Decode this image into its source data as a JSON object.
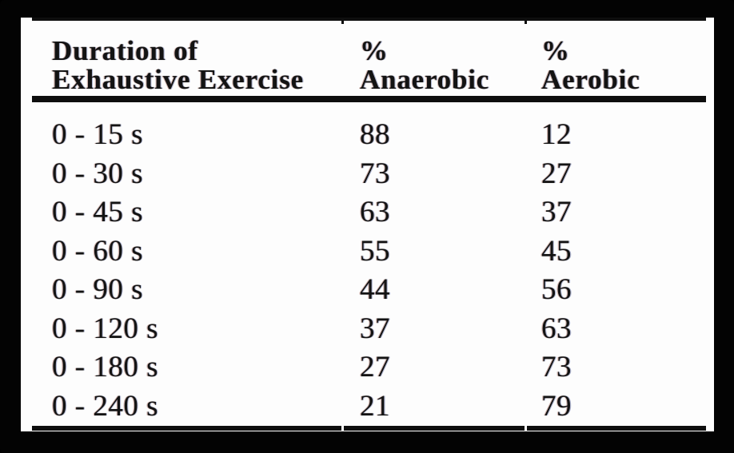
{
  "colors": {
    "frame": "#030303",
    "paper": "#fdfdfd",
    "rule": "#0e0e0e",
    "text": "#131313"
  },
  "table": {
    "columns": [
      {
        "id": "duration",
        "header_line1": "Duration of",
        "header_line2": "Exhaustive Exercise"
      },
      {
        "id": "anaerobic",
        "header_line1": "%",
        "header_line2": "Anaerobic"
      },
      {
        "id": "aerobic",
        "header_line1": "%",
        "header_line2": "Aerobic"
      }
    ],
    "rows": [
      {
        "duration": "0 - 15 s",
        "anaerobic": "88",
        "aerobic": "12"
      },
      {
        "duration": "0 - 30 s",
        "anaerobic": "73",
        "aerobic": "27"
      },
      {
        "duration": "0 - 45 s",
        "anaerobic": "63",
        "aerobic": "37"
      },
      {
        "duration": "0 - 60 s",
        "anaerobic": "55",
        "aerobic": "45"
      },
      {
        "duration": "0 - 90 s",
        "anaerobic": "44",
        "aerobic": "56"
      },
      {
        "duration": "0 - 120 s",
        "anaerobic": "37",
        "aerobic": "63"
      },
      {
        "duration": "0 - 180 s",
        "anaerobic": "27",
        "aerobic": "73"
      },
      {
        "duration": "0 - 240 s",
        "anaerobic": "21",
        "aerobic": "79"
      }
    ]
  },
  "chart_data": {
    "type": "table",
    "columns": [
      "Duration of Exhaustive Exercise",
      "% Anaerobic",
      "% Aerobic"
    ],
    "rows": [
      [
        "0 - 15 s",
        88,
        12
      ],
      [
        "0 - 30 s",
        73,
        27
      ],
      [
        "0 - 45 s",
        63,
        37
      ],
      [
        "0 - 60 s",
        55,
        45
      ],
      [
        "0 - 90 s",
        44,
        56
      ],
      [
        "0 - 120 s",
        37,
        63
      ],
      [
        "0 - 180 s",
        27,
        73
      ],
      [
        "0 - 240 s",
        21,
        79
      ]
    ]
  }
}
